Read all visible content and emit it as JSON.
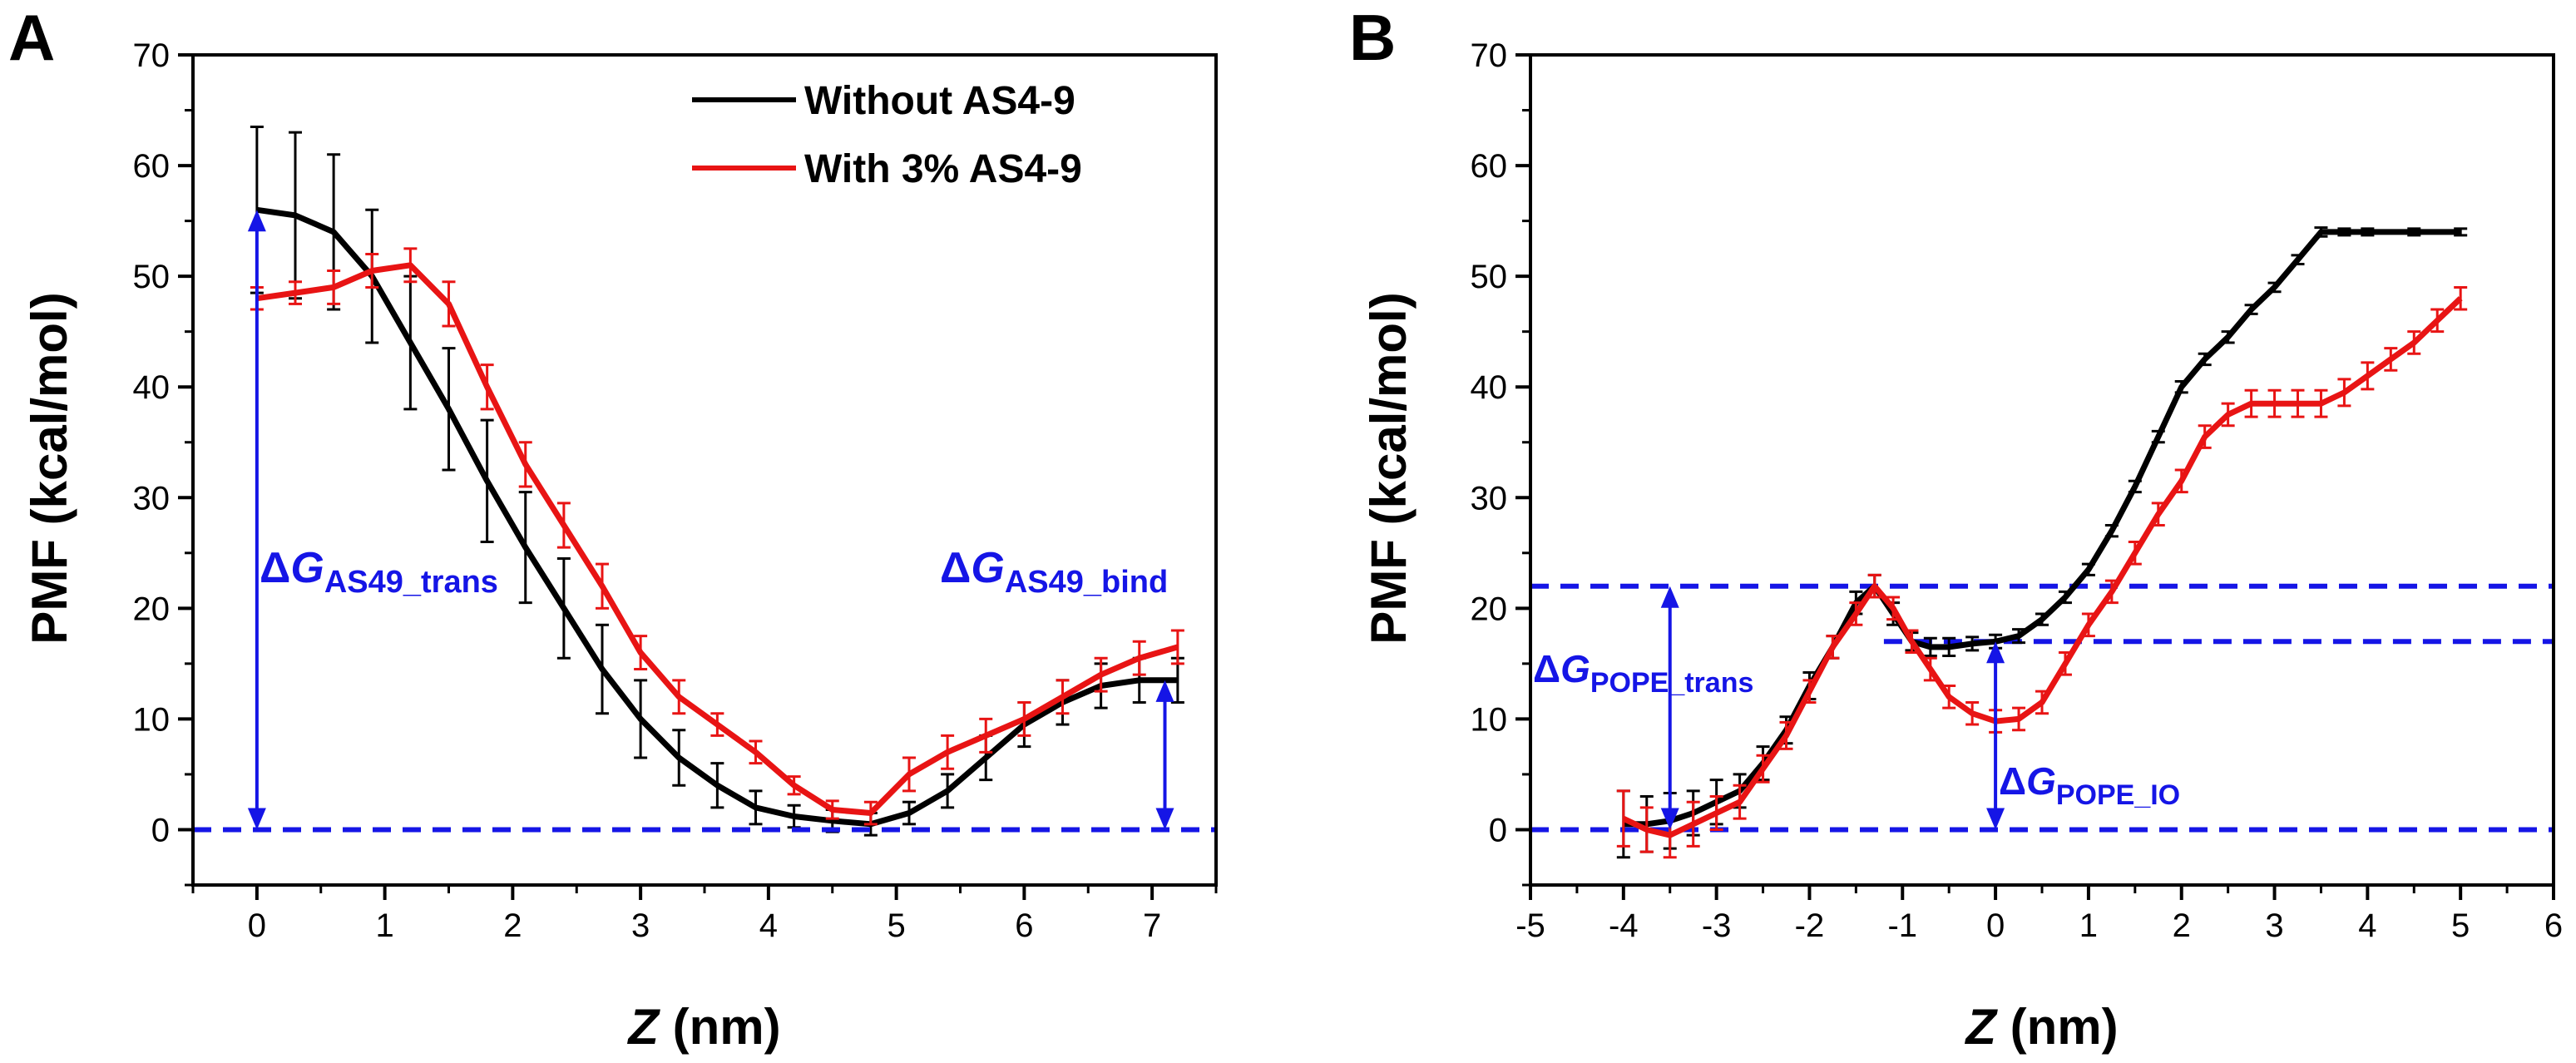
{
  "chart_data": [
    {
      "panel": "A",
      "type": "line",
      "xlabel_var": "Z",
      "xlabel_unit": " (nm)",
      "ylabel": "PMF (kcal/mol)",
      "xlim": [
        -0.5,
        7.5
      ],
      "ylim": [
        -5,
        70
      ],
      "xticks": [
        0,
        1,
        2,
        3,
        4,
        5,
        6,
        7
      ],
      "yticks": [
        0,
        10,
        20,
        30,
        40,
        50,
        60,
        70
      ],
      "legend": {
        "placement": "top-right",
        "entries": [
          "Without AS4-9",
          "With 3% AS4-9"
        ]
      },
      "series": [
        {
          "name": "Without AS4-9",
          "color": "#000000",
          "x": [
            0,
            0.3,
            0.6,
            0.9,
            1.2,
            1.5,
            1.8,
            2.1,
            2.4,
            2.7,
            3.0,
            3.3,
            3.6,
            3.9,
            4.2,
            4.5,
            4.8,
            5.1,
            5.4,
            5.7,
            6.0,
            6.3,
            6.6,
            6.9,
            7.2
          ],
          "y": [
            56,
            55.5,
            54,
            50,
            44,
            38,
            31.5,
            25.5,
            20,
            14.5,
            10,
            6.5,
            4,
            2,
            1.2,
            0.8,
            0.5,
            1.5,
            3.5,
            6.5,
            9.5,
            11.5,
            13,
            13.5,
            13.5
          ],
          "err": [
            7.5,
            7.5,
            7,
            6,
            6,
            5.5,
            5.5,
            5,
            4.5,
            4,
            3.5,
            2.5,
            2,
            1.5,
            1,
            1,
            1,
            1,
            1.5,
            2,
            2,
            2,
            2,
            2,
            2
          ]
        },
        {
          "name": "With 3% AS4-9",
          "color": "#e81414",
          "x": [
            0,
            0.3,
            0.6,
            0.9,
            1.2,
            1.5,
            1.8,
            2.1,
            2.4,
            2.7,
            3.0,
            3.3,
            3.6,
            3.9,
            4.2,
            4.5,
            4.8,
            5.1,
            5.4,
            5.7,
            6.0,
            6.3,
            6.6,
            6.9,
            7.2
          ],
          "y": [
            48,
            48.5,
            49,
            50.5,
            51,
            47.5,
            40,
            33,
            27.5,
            22,
            16,
            12,
            9.5,
            7,
            4,
            1.8,
            1.5,
            5,
            7,
            8.5,
            10,
            12,
            14,
            15.5,
            16.5
          ],
          "err": [
            1,
            1,
            1.5,
            1.5,
            1.5,
            2,
            2,
            2,
            2,
            2,
            1.5,
            1.5,
            1,
            1,
            0.8,
            0.8,
            1,
            1.5,
            1.5,
            1.5,
            1.5,
            1.5,
            1.5,
            1.5,
            1.5
          ]
        }
      ],
      "reference_line": {
        "y": 0,
        "color": "#1515e6",
        "style": "dashed"
      },
      "annotations": [
        {
          "id": "dg-trans",
          "symbol": "ΔG",
          "sub": "AS49_trans",
          "arrow_x": 0,
          "from": 0,
          "to": 56
        },
        {
          "id": "dg-bind",
          "symbol": "ΔG",
          "sub": "AS49_bind",
          "arrow_x": 7.1,
          "from": 0,
          "to": 13.5
        }
      ]
    },
    {
      "panel": "B",
      "type": "line",
      "xlabel_var": "Z",
      "xlabel_unit": " (nm)",
      "ylabel": "PMF (kcal/mol)",
      "xlim": [
        -5,
        6
      ],
      "ylim": [
        -5,
        70
      ],
      "xticks": [
        -5,
        -4,
        -3,
        -2,
        -1,
        0,
        1,
        2,
        3,
        4,
        5,
        6
      ],
      "yticks": [
        0,
        10,
        20,
        30,
        40,
        50,
        60,
        70
      ],
      "series": [
        {
          "name": "Without AS4-9",
          "color": "#000000",
          "x": [
            -4,
            -3.75,
            -3.5,
            -3.25,
            -3,
            -2.75,
            -2.5,
            -2.25,
            -2,
            -1.75,
            -1.5,
            -1.3,
            -1.1,
            -0.9,
            -0.7,
            -0.5,
            -0.25,
            0,
            0.25,
            0.5,
            0.75,
            1,
            1.25,
            1.5,
            1.75,
            2,
            2.25,
            2.5,
            2.75,
            3,
            3.25,
            3.5,
            3.75,
            4,
            4.5,
            5
          ],
          "y": [
            0.5,
            0.5,
            0.8,
            1.5,
            2.5,
            3.5,
            6,
            9,
            13,
            16.5,
            20.5,
            22,
            19.5,
            17,
            16.5,
            16.5,
            16.8,
            17,
            17.5,
            19,
            21,
            23.5,
            27,
            31,
            35.5,
            40,
            42.5,
            44.5,
            47,
            49,
            51.5,
            54,
            54,
            54,
            54,
            54
          ],
          "err": [
            3,
            2.5,
            2.5,
            2,
            2,
            1.5,
            1.5,
            1.2,
            1.2,
            1,
            1,
            1,
            1,
            0.8,
            0.8,
            0.8,
            0.6,
            0.6,
            0.6,
            0.5,
            0.5,
            0.5,
            0.5,
            0.5,
            0.5,
            0.5,
            0.5,
            0.5,
            0.4,
            0.4,
            0.4,
            0.4,
            0.3,
            0.3,
            0.3,
            0.3
          ]
        },
        {
          "name": "With 3% AS4-9",
          "color": "#e81414",
          "x": [
            -4,
            -3.75,
            -3.5,
            -3.25,
            -3,
            -2.75,
            -2.5,
            -2.25,
            -2,
            -1.75,
            -1.5,
            -1.3,
            -1.1,
            -0.9,
            -0.7,
            -0.5,
            -0.25,
            0,
            0.25,
            0.5,
            0.75,
            1,
            1.25,
            1.5,
            1.75,
            2,
            2.25,
            2.5,
            2.75,
            3,
            3.25,
            3.5,
            3.75,
            4,
            4.25,
            4.5,
            4.75,
            5
          ],
          "y": [
            1,
            0,
            -0.5,
            0.5,
            1.5,
            2.5,
            5.5,
            8.5,
            12.5,
            16.5,
            19.5,
            22,
            20,
            17,
            14.5,
            12,
            10.5,
            9.8,
            10,
            11.5,
            15,
            18.5,
            21.5,
            25,
            28.5,
            31.5,
            35.5,
            37.5,
            38.5,
            38.5,
            38.5,
            38.5,
            39.5,
            41,
            42.5,
            44,
            46,
            48
          ],
          "err": [
            2.5,
            2,
            2,
            2,
            1.5,
            1.5,
            1.2,
            1.2,
            1,
            1,
            1,
            1,
            1,
            1,
            1,
            1,
            1,
            1,
            1,
            1,
            1,
            1,
            1,
            1,
            1,
            1,
            1,
            1,
            1.2,
            1.2,
            1.2,
            1.2,
            1.2,
            1.2,
            1,
            1,
            1,
            1
          ]
        }
      ],
      "reference_lines": [
        {
          "y": 22,
          "color": "#1515e6",
          "style": "dashed"
        },
        {
          "y": 17,
          "x_start": -1.2,
          "color": "#1515e6",
          "style": "dashed"
        },
        {
          "y": 0,
          "color": "#1515e6",
          "style": "dashed"
        }
      ],
      "annotations": [
        {
          "id": "dg-pope-trans",
          "symbol": "ΔG",
          "sub": "POPE_trans",
          "arrow_x": -3.5,
          "from": 0,
          "to": 22
        },
        {
          "id": "dg-pope-io",
          "symbol": "ΔG",
          "sub": "POPE_IO",
          "arrow_x": 0,
          "from": 0,
          "to": 17
        }
      ]
    }
  ]
}
